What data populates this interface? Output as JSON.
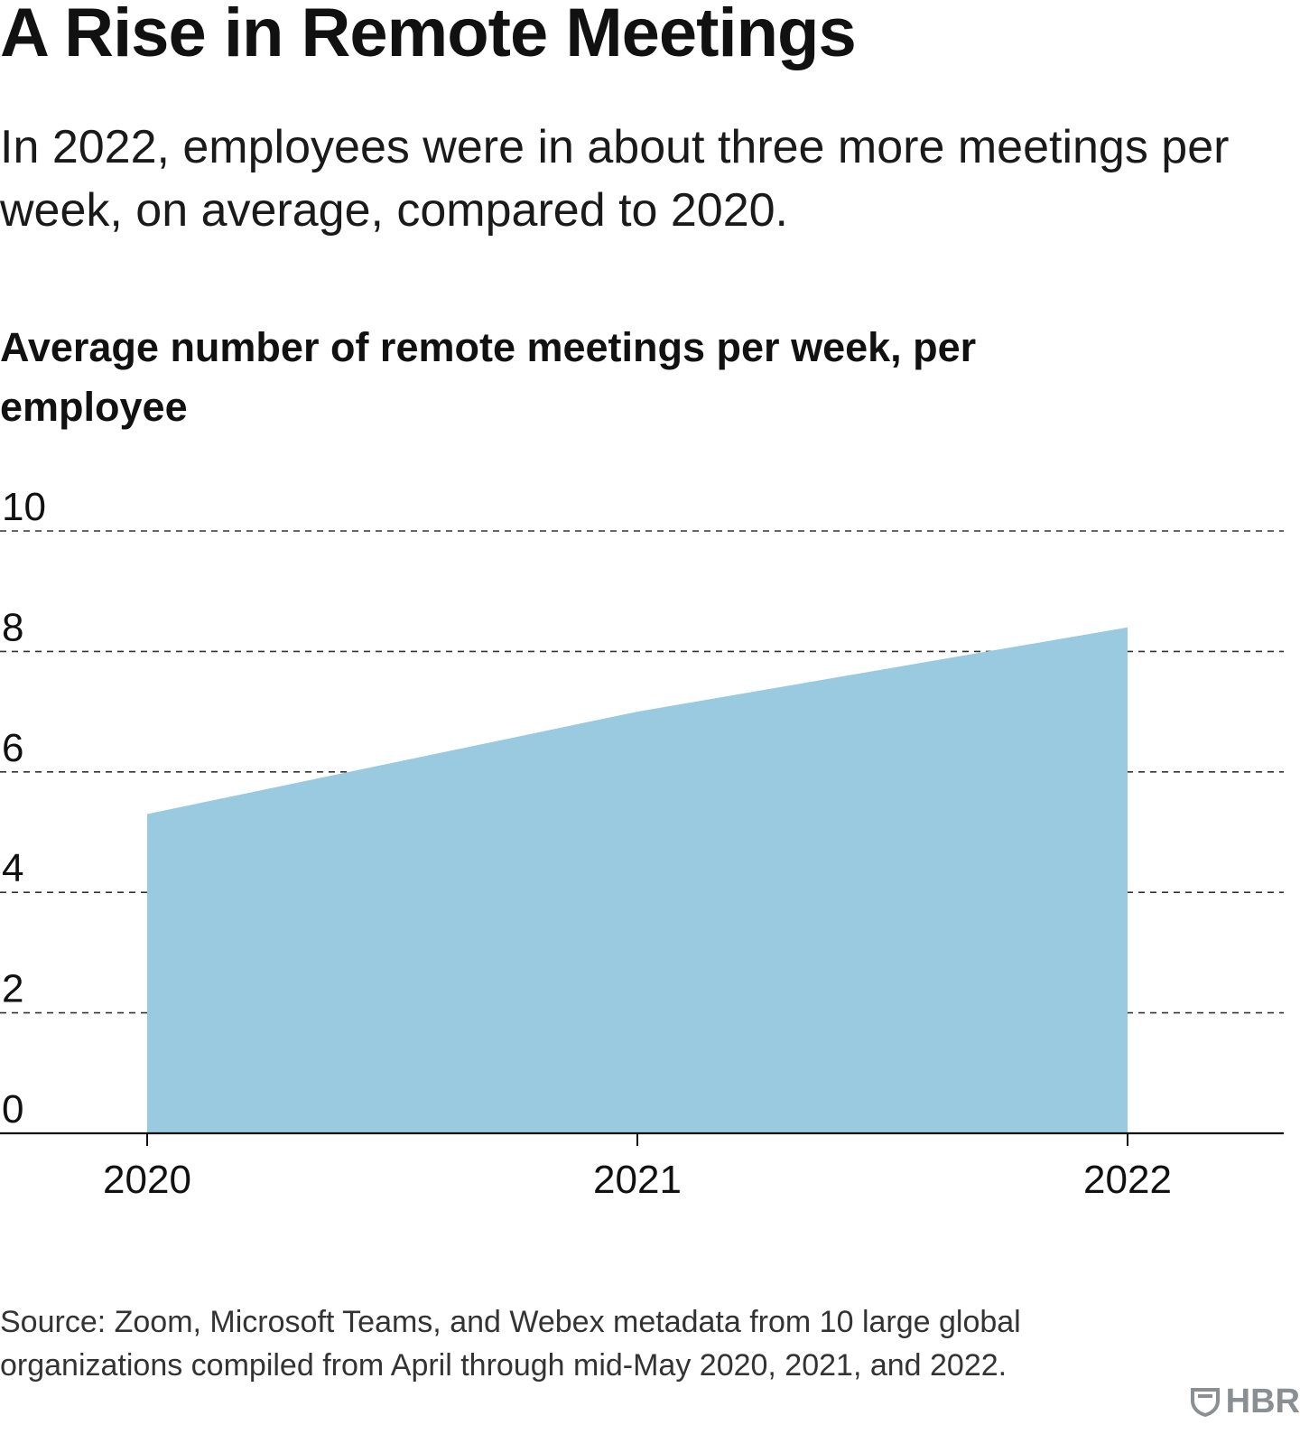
{
  "header": {
    "title": "A Rise in Remote Meetings",
    "subtitle": "In 2022, employees were in about three more meetings per week, on average, compared to 2020.",
    "chart_heading": "Average number of remote meetings per week, per employee"
  },
  "footer": {
    "source": "Source: Zoom, Microsoft Teams, and Webex metadata from 10 large global organizations compiled from April through mid-May 2020, 2021, and 2022.",
    "logo_text": "HBR"
  },
  "colors": {
    "area_fill": "#99CADF",
    "gridline": "#333333",
    "axis": "#111111",
    "text": "#111111",
    "logo": "#8A8F94"
  },
  "chart_data": {
    "type": "area",
    "title": "Average number of remote meetings per week, per employee",
    "x": [
      "2020",
      "2021",
      "2022"
    ],
    "series": [
      {
        "values": [
          5.3,
          7.0,
          8.4
        ]
      }
    ],
    "yticks": [
      "0",
      "2",
      "4",
      "6",
      "8",
      "10"
    ],
    "ylim": [
      0,
      10
    ],
    "grid": "horizontal dashed",
    "legend": "none"
  }
}
